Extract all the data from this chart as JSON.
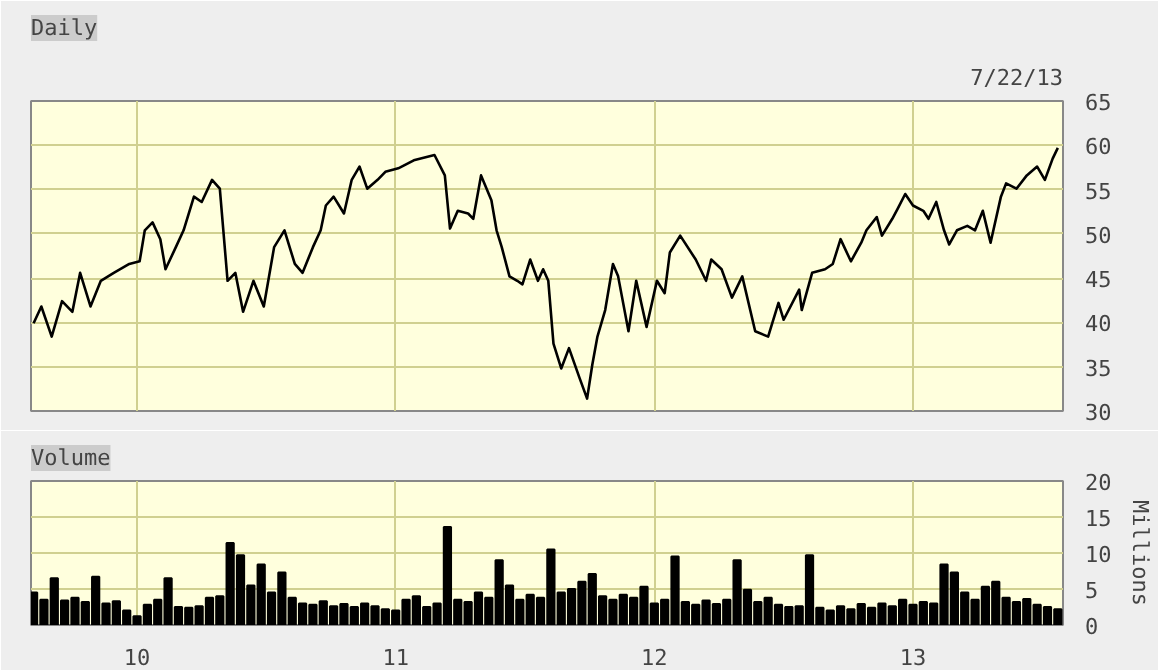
{
  "chart_data": [
    {
      "type": "line",
      "title": "Daily",
      "annotations": [
        "7/22/13"
      ],
      "tick_labels": "y",
      "grid": true,
      "xlim": [
        2009.59,
        2013.58
      ],
      "xticks": [
        {
          "value": 2010,
          "label": null
        },
        {
          "value": 2011,
          "label": null
        },
        {
          "value": 2012,
          "label": null
        },
        {
          "value": 2013,
          "label": null
        }
      ],
      "ylim": [
        30,
        65
      ],
      "yticks": [
        30,
        35,
        40,
        45,
        50,
        55,
        60,
        65
      ],
      "x": [
        2009.6,
        2009.63,
        2009.67,
        2009.71,
        2009.75,
        2009.78,
        2009.82,
        2009.86,
        2009.91,
        2009.97,
        2010.01,
        2010.03,
        2010.06,
        2010.09,
        2010.11,
        2010.15,
        2010.18,
        2010.22,
        2010.25,
        2010.29,
        2010.32,
        2010.35,
        2010.38,
        2010.41,
        2010.45,
        2010.49,
        2010.53,
        2010.57,
        2010.61,
        2010.64,
        2010.68,
        2010.71,
        2010.73,
        2010.76,
        2010.8,
        2010.83,
        2010.86,
        2010.89,
        2010.93,
        2010.96,
        2011.01,
        2011.07,
        2011.15,
        2011.19,
        2011.21,
        2011.24,
        2011.28,
        2011.3,
        2011.33,
        2011.37,
        2011.39,
        2011.41,
        2011.44,
        2011.47,
        2011.49,
        2011.52,
        2011.55,
        2011.57,
        2011.59,
        2011.61,
        2011.64,
        2011.67,
        2011.71,
        2011.74,
        2011.76,
        2011.78,
        2011.81,
        2011.84,
        2011.86,
        2011.9,
        2011.93,
        2011.97,
        2012.01,
        2012.04,
        2012.06,
        2012.1,
        2012.16,
        2012.2,
        2012.22,
        2012.26,
        2012.3,
        2012.34,
        2012.39,
        2012.44,
        2012.48,
        2012.5,
        2012.56,
        2012.57,
        2012.61,
        2012.66,
        2012.69,
        2012.72,
        2012.76,
        2012.8,
        2012.82,
        2012.86,
        2012.88,
        2012.92,
        2012.94,
        2012.97,
        2013.0,
        2013.04,
        2013.06,
        2013.09,
        2013.12,
        2013.14,
        2013.17,
        2013.21,
        2013.24,
        2013.27,
        2013.3,
        2013.34,
        2013.36,
        2013.4,
        2013.44,
        2013.48,
        2013.51,
        2013.54,
        2013.56
      ],
      "series": [
        {
          "color": "#000000",
          "values": [
            39.9,
            41.8,
            38.4,
            42.4,
            41.2,
            45.6,
            41.8,
            44.7,
            45.6,
            46.6,
            46.9,
            50.4,
            51.3,
            49.4,
            46.0,
            48.5,
            50.4,
            54.2,
            53.6,
            56.1,
            55.1,
            44.7,
            45.6,
            41.2,
            44.7,
            41.8,
            48.5,
            50.4,
            46.6,
            45.6,
            48.5,
            50.4,
            53.2,
            54.2,
            52.3,
            56.1,
            57.6,
            55.1,
            56.1,
            57.0,
            57.4,
            58.3,
            58.9,
            56.6,
            50.6,
            52.6,
            52.3,
            51.7,
            56.6,
            53.8,
            50.4,
            48.5,
            45.2,
            44.7,
            44.3,
            47.1,
            44.7,
            46.0,
            44.7,
            37.6,
            34.8,
            37.1,
            33.8,
            31.4,
            35.2,
            38.4,
            41.4,
            46.6,
            45.2,
            39.0,
            44.7,
            39.5,
            44.7,
            43.3,
            47.9,
            49.8,
            47.1,
            44.7,
            47.1,
            46.0,
            42.8,
            45.2,
            39.0,
            38.4,
            42.2,
            40.3,
            43.7,
            41.4,
            45.6,
            46.0,
            46.6,
            49.4,
            46.9,
            49.0,
            50.4,
            51.9,
            49.8,
            51.7,
            52.8,
            54.5,
            53.2,
            52.6,
            51.7,
            53.6,
            50.4,
            48.8,
            50.4,
            50.9,
            50.4,
            52.6,
            49.0,
            54.2,
            55.7,
            55.1,
            56.6,
            57.6,
            56.1,
            58.5,
            59.7
          ]
        }
      ]
    },
    {
      "type": "bar",
      "title": "Volume",
      "ylabel": "Millions",
      "grid": true,
      "xlim": [
        2009.59,
        2013.58
      ],
      "xticks": [
        {
          "value": 2010,
          "label": "10"
        },
        {
          "value": 2011,
          "label": "11"
        },
        {
          "value": 2012,
          "label": "12"
        },
        {
          "value": 2013,
          "label": "13"
        }
      ],
      "ylim": [
        0,
        20
      ],
      "yticks": [
        0,
        5,
        10,
        15,
        20
      ],
      "x": [
        2009.6,
        2009.64,
        2009.68,
        2009.72,
        2009.76,
        2009.8,
        2009.84,
        2009.88,
        2009.92,
        2009.96,
        2010.0,
        2010.04,
        2010.08,
        2010.12,
        2010.16,
        2010.2,
        2010.24,
        2010.28,
        2010.32,
        2010.36,
        2010.4,
        2010.44,
        2010.48,
        2010.52,
        2010.56,
        2010.6,
        2010.64,
        2010.68,
        2010.72,
        2010.76,
        2010.8,
        2010.84,
        2010.88,
        2010.92,
        2010.96,
        2011.0,
        2011.04,
        2011.08,
        2011.12,
        2011.16,
        2011.2,
        2011.24,
        2011.28,
        2011.32,
        2011.36,
        2011.4,
        2011.44,
        2011.48,
        2011.52,
        2011.56,
        2011.6,
        2011.64,
        2011.68,
        2011.72,
        2011.76,
        2011.8,
        2011.84,
        2011.88,
        2011.92,
        2011.96,
        2012.0,
        2012.04,
        2012.08,
        2012.12,
        2012.16,
        2012.2,
        2012.24,
        2012.28,
        2012.32,
        2012.36,
        2012.4,
        2012.44,
        2012.48,
        2012.52,
        2012.56,
        2012.6,
        2012.64,
        2012.68,
        2012.72,
        2012.76,
        2012.8,
        2012.84,
        2012.88,
        2012.92,
        2012.96,
        2013.0,
        2013.04,
        2013.08,
        2013.12,
        2013.16,
        2013.2,
        2013.24,
        2013.28,
        2013.32,
        2013.36,
        2013.4,
        2013.44,
        2013.48,
        2013.52,
        2013.56
      ],
      "series": [
        {
          "color": "#000000",
          "values": [
            4.5,
            3.5,
            6.5,
            3.4,
            3.8,
            3.2,
            6.7,
            3.0,
            3.3,
            2.0,
            1.2,
            2.8,
            3.5,
            6.5,
            2.5,
            2.4,
            2.6,
            3.8,
            4.0,
            11.4,
            9.7,
            5.5,
            8.4,
            4.5,
            7.3,
            3.8,
            3.0,
            2.8,
            3.3,
            2.6,
            2.9,
            2.5,
            3.0,
            2.6,
            2.2,
            2.0,
            3.5,
            4.0,
            2.5,
            3.0,
            13.6,
            3.5,
            3.2,
            4.5,
            3.8,
            9.0,
            5.5,
            3.5,
            4.2,
            3.8,
            10.5,
            4.5,
            5.0,
            6.0,
            7.1,
            4.0,
            3.5,
            4.2,
            3.8,
            5.3,
            3.0,
            3.5,
            9.5,
            3.2,
            2.8,
            3.4,
            2.9,
            3.5,
            9.0,
            4.9,
            3.2,
            3.8,
            2.8,
            2.5,
            2.6,
            9.7,
            2.4,
            2.0,
            2.6,
            2.2,
            2.9,
            2.4,
            3.0,
            2.6,
            3.5,
            2.8,
            3.2,
            3.0,
            8.4,
            7.3,
            4.5,
            3.5,
            5.3,
            6.0,
            3.8,
            3.2,
            3.6,
            2.8,
            2.5,
            2.2
          ]
        }
      ]
    }
  ]
}
